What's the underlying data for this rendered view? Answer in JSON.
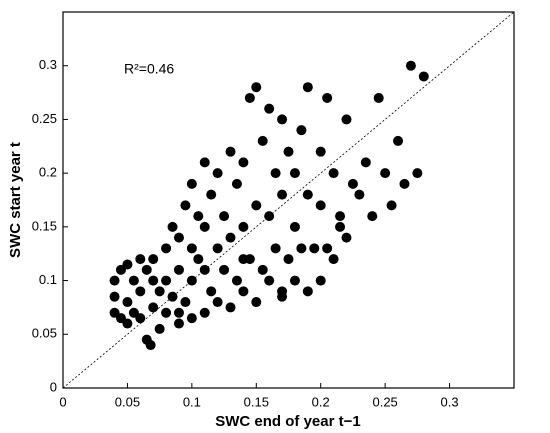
{
  "chart_data": {
    "type": "scatter",
    "x_label": "SWC end of year t−1",
    "y_label": "SWC start year t",
    "annotation": "R²=0.46",
    "color": "#000000",
    "xlim": [
      0,
      0.35
    ],
    "ylim": [
      0,
      0.35
    ],
    "xticks": [
      0,
      0.05,
      0.1,
      0.15,
      0.2,
      0.25,
      0.3
    ],
    "yticks": [
      0,
      0.05,
      0.1,
      0.15,
      0.2,
      0.25,
      0.3
    ],
    "x": [
      0.04,
      0.04,
      0.04,
      0.045,
      0.045,
      0.05,
      0.05,
      0.05,
      0.055,
      0.055,
      0.06,
      0.06,
      0.06,
      0.065,
      0.065,
      0.07,
      0.07,
      0.07,
      0.075,
      0.075,
      0.08,
      0.08,
      0.08,
      0.085,
      0.085,
      0.09,
      0.09,
      0.09,
      0.095,
      0.095,
      0.1,
      0.1,
      0.1,
      0.1,
      0.105,
      0.105,
      0.11,
      0.11,
      0.11,
      0.11,
      0.115,
      0.115,
      0.12,
      0.12,
      0.12,
      0.125,
      0.125,
      0.13,
      0.13,
      0.13,
      0.135,
      0.135,
      0.14,
      0.14,
      0.14,
      0.145,
      0.145,
      0.15,
      0.15,
      0.15,
      0.155,
      0.155,
      0.16,
      0.16,
      0.16,
      0.165,
      0.165,
      0.17,
      0.17,
      0.17,
      0.175,
      0.175,
      0.18,
      0.18,
      0.18,
      0.185,
      0.185,
      0.19,
      0.19,
      0.19,
      0.195,
      0.2,
      0.2,
      0.2,
      0.205,
      0.21,
      0.21,
      0.215,
      0.22,
      0.22,
      0.225,
      0.23,
      0.235,
      0.24,
      0.245,
      0.25,
      0.255,
      0.26,
      0.265,
      0.27,
      0.275,
      0.28,
      0.205,
      0.215,
      0.17,
      0.14,
      0.09,
      0.068
    ],
    "y": [
      0.07,
      0.085,
      0.1,
      0.065,
      0.11,
      0.06,
      0.08,
      0.115,
      0.07,
      0.1,
      0.065,
      0.09,
      0.12,
      0.045,
      0.11,
      0.075,
      0.1,
      0.12,
      0.055,
      0.09,
      0.07,
      0.1,
      0.13,
      0.085,
      0.15,
      0.06,
      0.11,
      0.14,
      0.08,
      0.17,
      0.065,
      0.1,
      0.13,
      0.19,
      0.12,
      0.16,
      0.07,
      0.11,
      0.15,
      0.21,
      0.09,
      0.18,
      0.08,
      0.13,
      0.2,
      0.11,
      0.16,
      0.075,
      0.14,
      0.22,
      0.1,
      0.19,
      0.09,
      0.15,
      0.21,
      0.12,
      0.27,
      0.08,
      0.17,
      0.28,
      0.11,
      0.23,
      0.1,
      0.16,
      0.26,
      0.13,
      0.2,
      0.09,
      0.18,
      0.25,
      0.12,
      0.22,
      0.1,
      0.15,
      0.2,
      0.13,
      0.24,
      0.09,
      0.18,
      0.28,
      0.13,
      0.1,
      0.17,
      0.22,
      0.27,
      0.12,
      0.2,
      0.16,
      0.14,
      0.25,
      0.19,
      0.18,
      0.21,
      0.16,
      0.27,
      0.2,
      0.17,
      0.23,
      0.19,
      0.3,
      0.2,
      0.29,
      0.13,
      0.15,
      0.085,
      0.12,
      0.07,
      0.04
    ]
  }
}
